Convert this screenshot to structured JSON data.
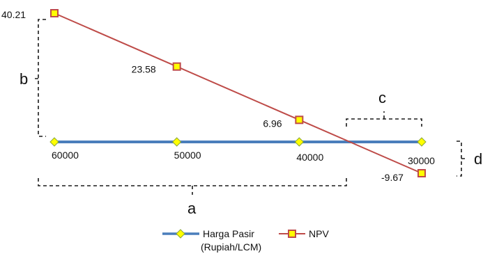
{
  "chart_data": {
    "type": "line",
    "title": "",
    "xlabel": "",
    "ylabel": "",
    "x_order": "descending",
    "series": [
      {
        "name": "Harga Pasir\n(Rupiah/LCM)",
        "color": "#4a7ebb",
        "marker": "diamond",
        "marker_fill": "#ffff00",
        "points": [
          {
            "x": 60000,
            "y": 0,
            "label": "60000"
          },
          {
            "x": 50000,
            "y": 0,
            "label": "50000"
          },
          {
            "x": 40000,
            "y": 0,
            "label": "40000"
          },
          {
            "x": 30000,
            "y": 0,
            "label": "30000"
          }
        ]
      },
      {
        "name": "NPV",
        "color": "#be4b48",
        "marker": "square",
        "marker_fill": "#ffff00",
        "points": [
          {
            "x": 60000,
            "y": 40.21,
            "label": "40.21"
          },
          {
            "x": 50000,
            "y": 23.58,
            "label": "23.58"
          },
          {
            "x": 40000,
            "y": 6.96,
            "label": "6.96"
          },
          {
            "x": 30000,
            "y": -9.67,
            "label": "-9.67"
          }
        ]
      }
    ],
    "annotations": [
      "a",
      "b",
      "c",
      "d"
    ],
    "legend": {
      "position": "bottom",
      "items": [
        {
          "label_line1": "Harga Pasir",
          "label_line2": "(Rupiah/LCM)"
        },
        {
          "label_line1": "NPV",
          "label_line2": ""
        }
      ]
    }
  }
}
